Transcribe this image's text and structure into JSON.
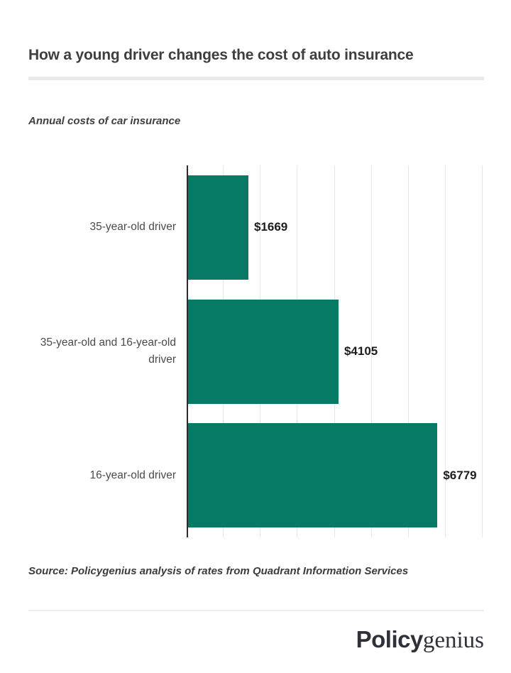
{
  "header": {
    "title": "How a young driver changes the cost of auto insurance"
  },
  "chart_data": {
    "type": "bar",
    "orientation": "horizontal",
    "title": "How a young driver changes the cost of auto insurance",
    "subtitle": "Annual costs of car insurance",
    "categories": [
      "35-year-old driver",
      "35-year-old and 16-year-old driver",
      "16-year-old driver"
    ],
    "category_lines": [
      [
        "35-year-old driver"
      ],
      [
        "35-year-old and 16-year-old",
        "driver"
      ],
      [
        "16-year-old driver"
      ]
    ],
    "values": [
      1669,
      4105,
      6779
    ],
    "value_labels": [
      "$1669",
      "$4105",
      "$6779"
    ],
    "xlim": [
      0,
      8000
    ],
    "gridline_interval": 1000,
    "grid": true,
    "legend": false,
    "bar_color": "#067a64",
    "axis_color": "#2c2c2c",
    "gridline_color": "#e7e7e7"
  },
  "source": {
    "text": "Source: Policygenius analysis of rates from Quadrant Information Services"
  },
  "footer": {
    "logo_bold": "Policy",
    "logo_serif": "genius"
  }
}
